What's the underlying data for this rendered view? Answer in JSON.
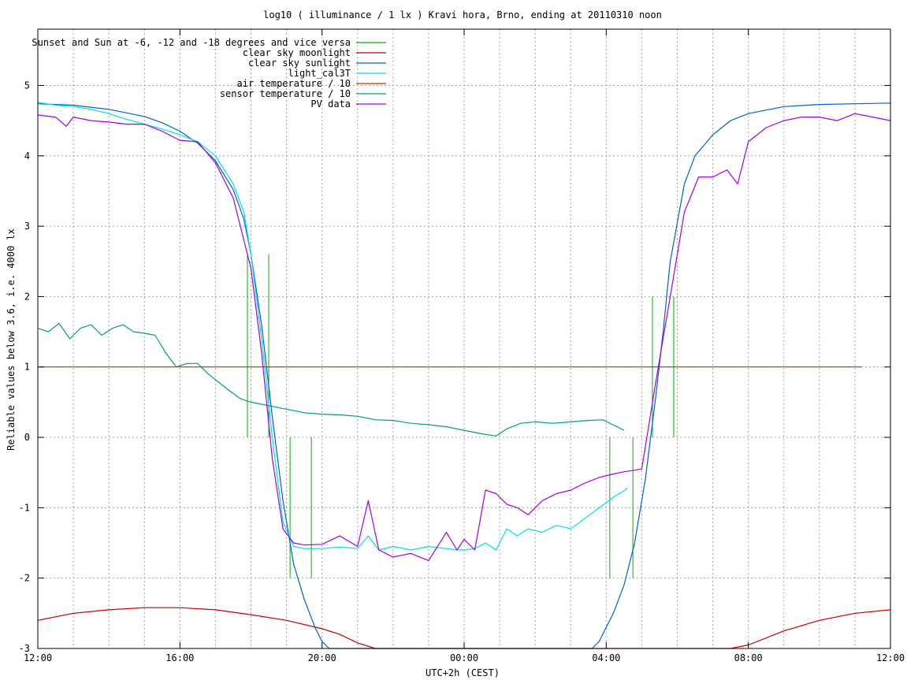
{
  "chart_data": {
    "type": "line",
    "title": "log10 ( illuminance / 1 lx ) Kravi hora, Brno, ending at 20110310 noon",
    "xlabel": "UTC+2h (CEST)",
    "ylabel": "Reliable values below 3.6, i.e. 4000 lx",
    "xlim": [
      0,
      24
    ],
    "ylim": [
      -3,
      5.8
    ],
    "grid": true,
    "legend_position": "top-left",
    "x_ticks": [
      {
        "value": 0,
        "label": "12:00"
      },
      {
        "value": 4,
        "label": "16:00"
      },
      {
        "value": 8,
        "label": "20:00"
      },
      {
        "value": 12,
        "label": "00:00"
      },
      {
        "value": 16,
        "label": "04:00"
      },
      {
        "value": 20,
        "label": "08:00"
      },
      {
        "value": 24,
        "label": "12:00"
      }
    ],
    "y_ticks": [
      {
        "value": 5,
        "label": "5"
      },
      {
        "value": 4,
        "label": "4"
      },
      {
        "value": 3,
        "label": "3"
      },
      {
        "value": 2,
        "label": "2"
      },
      {
        "value": 1,
        "label": "1"
      },
      {
        "value": 0,
        "label": "0"
      },
      {
        "value": -1,
        "label": "-1"
      },
      {
        "value": -2,
        "label": "-2"
      },
      {
        "value": -3,
        "label": "-3"
      }
    ],
    "minor_x_grid_step": 1,
    "series": [
      {
        "name": "Sunset and Sun at -6, -12 and -18 degrees and vice versa",
        "color": "#00b000",
        "style": "impulses",
        "points": [
          {
            "x": 5.9,
            "y": 2.6
          },
          {
            "x": 6.5,
            "y": 2.6
          },
          {
            "x": 7.1,
            "y": -2.0
          },
          {
            "x": 7.7,
            "y": -2.0
          },
          {
            "x": 16.1,
            "y": -2.0
          },
          {
            "x": 16.75,
            "y": -2.0
          },
          {
            "x": 17.3,
            "y": 2.0
          },
          {
            "x": 17.9,
            "y": 2.0
          }
        ]
      },
      {
        "name": "clear sky moonlight",
        "color": "#c00000",
        "style": "line",
        "x": [
          0,
          1,
          2,
          3,
          4,
          5,
          6,
          7,
          8,
          8.5,
          9,
          9.5,
          19.5,
          20,
          21,
          22,
          23,
          24
        ],
        "y": [
          -2.6,
          -2.5,
          -2.45,
          -2.42,
          -2.42,
          -2.45,
          -2.52,
          -2.6,
          -2.72,
          -2.8,
          -2.92,
          -3.05,
          -3.05,
          -2.95,
          -2.75,
          -2.6,
          -2.5,
          -2.45
        ]
      },
      {
        "name": "clear sky sunlight",
        "color": "#0060d0",
        "style": "line",
        "x": [
          0,
          1,
          2,
          3,
          3.5,
          4,
          4.5,
          5,
          5.5,
          5.8,
          6,
          6.3,
          6.6,
          6.9,
          7.2,
          7.5,
          7.8,
          8.0,
          8.2,
          8.4,
          15.4,
          15.6,
          15.8,
          16.2,
          16.5,
          16.8,
          17.1,
          17.4,
          17.6,
          17.8,
          18.2,
          18.5,
          19,
          19.5,
          20,
          21,
          22,
          23,
          24
        ],
        "y": [
          4.74,
          4.72,
          4.66,
          4.56,
          4.47,
          4.35,
          4.18,
          3.93,
          3.52,
          3.1,
          2.6,
          1.6,
          0.3,
          -0.9,
          -1.8,
          -2.3,
          -2.7,
          -2.9,
          -3.05,
          -3.05,
          -3.05,
          -3.05,
          -2.9,
          -2.5,
          -2.1,
          -1.5,
          -0.6,
          0.6,
          1.5,
          2.5,
          3.6,
          4.0,
          4.3,
          4.5,
          4.6,
          4.7,
          4.73,
          4.74,
          4.75
        ]
      },
      {
        "name": "light_cal3T",
        "color": "#00e0e0",
        "style": "line",
        "x": [
          0,
          0.5,
          1,
          1.5,
          2,
          2.5,
          3,
          3.5,
          4,
          4.5,
          5,
          5.5,
          5.8,
          6,
          6.3,
          6.6,
          6.9,
          7.2,
          7.5,
          8,
          8.5,
          9,
          9.3,
          9.6,
          10,
          10.5,
          11,
          11.5,
          11.8,
          12,
          12.3,
          12.6,
          12.9,
          13.2,
          13.5,
          13.8,
          14.2,
          14.6,
          15,
          15.4,
          15.8,
          16.2,
          16.5,
          16.6
        ],
        "y": [
          4.76,
          4.72,
          4.7,
          4.66,
          4.6,
          4.52,
          4.45,
          4.38,
          4.3,
          4.2,
          4.0,
          3.6,
          3.2,
          2.6,
          1.4,
          0.0,
          -1.2,
          -1.55,
          -1.58,
          -1.58,
          -1.56,
          -1.58,
          -1.4,
          -1.6,
          -1.55,
          -1.6,
          -1.55,
          -1.58,
          -1.6,
          -1.6,
          -1.58,
          -1.5,
          -1.6,
          -1.3,
          -1.4,
          -1.3,
          -1.35,
          -1.25,
          -1.3,
          -1.15,
          -1.0,
          -0.85,
          -0.76,
          -0.72
        ]
      },
      {
        "name": "air temperature / 10",
        "color": "#c03000",
        "style": "line",
        "x": [
          0,
          23.2
        ],
        "y": [
          1.0,
          1.0
        ]
      },
      {
        "name": "sensor temperature / 10",
        "color": "#00a070",
        "style": "line",
        "x": [
          0,
          0.3,
          0.6,
          0.9,
          1.2,
          1.5,
          1.8,
          2.1,
          2.4,
          2.7,
          3.0,
          3.3,
          3.6,
          3.9,
          4.2,
          4.5,
          4.8,
          5.1,
          5.4,
          5.7,
          6.0,
          6.5,
          7.0,
          7.5,
          8.0,
          8.5,
          9.0,
          9.5,
          10.0,
          10.5,
          11.0,
          11.5,
          12.0,
          12.5,
          12.9,
          13.2,
          13.6,
          14.0,
          14.5,
          15.0,
          15.5,
          15.9,
          16.3,
          16.5
        ],
        "y": [
          1.55,
          1.5,
          1.62,
          1.4,
          1.55,
          1.6,
          1.45,
          1.55,
          1.6,
          1.5,
          1.48,
          1.45,
          1.2,
          1.0,
          1.05,
          1.05,
          0.9,
          0.78,
          0.66,
          0.55,
          0.5,
          0.45,
          0.4,
          0.35,
          0.33,
          0.32,
          0.3,
          0.25,
          0.24,
          0.2,
          0.18,
          0.15,
          0.1,
          0.05,
          0.02,
          0.12,
          0.2,
          0.22,
          0.2,
          0.22,
          0.24,
          0.25,
          0.15,
          0.1
        ]
      },
      {
        "name": "PV data",
        "color": "#a000e0",
        "style": "line",
        "x": [
          0,
          0.5,
          0.8,
          1,
          1.5,
          2,
          2.5,
          3,
          3.5,
          4,
          4.5,
          5,
          5.5,
          5.8,
          6,
          6.3,
          6.6,
          6.9,
          7.2,
          7.5,
          8,
          8.5,
          9,
          9.3,
          9.6,
          10,
          10.5,
          11,
          11.5,
          11.8,
          12,
          12.3,
          12.6,
          12.9,
          13.2,
          13.5,
          13.8,
          14.2,
          14.6,
          15,
          15.4,
          15.8,
          16.2,
          16.5,
          17,
          17.4,
          17.8,
          18.2,
          18.6,
          19,
          19.4,
          19.7,
          20,
          20.5,
          21,
          21.5,
          22,
          22.5,
          23,
          23.5,
          24
        ],
        "y": [
          4.58,
          4.55,
          4.42,
          4.55,
          4.5,
          4.48,
          4.45,
          4.45,
          4.35,
          4.22,
          4.2,
          3.9,
          3.4,
          2.8,
          2.4,
          1.2,
          -0.3,
          -1.3,
          -1.5,
          -1.53,
          -1.52,
          -1.4,
          -1.55,
          -0.9,
          -1.6,
          -1.7,
          -1.65,
          -1.75,
          -1.35,
          -1.6,
          -1.45,
          -1.6,
          -0.75,
          -0.8,
          -0.95,
          -1.0,
          -1.1,
          -0.9,
          -0.8,
          -0.75,
          -0.65,
          -0.57,
          -0.52,
          -0.49,
          -0.45,
          0.8,
          2.0,
          3.2,
          3.7,
          3.7,
          3.8,
          3.6,
          4.2,
          4.4,
          4.5,
          4.55,
          4.55,
          4.5,
          4.6,
          4.55,
          4.5
        ]
      }
    ]
  }
}
